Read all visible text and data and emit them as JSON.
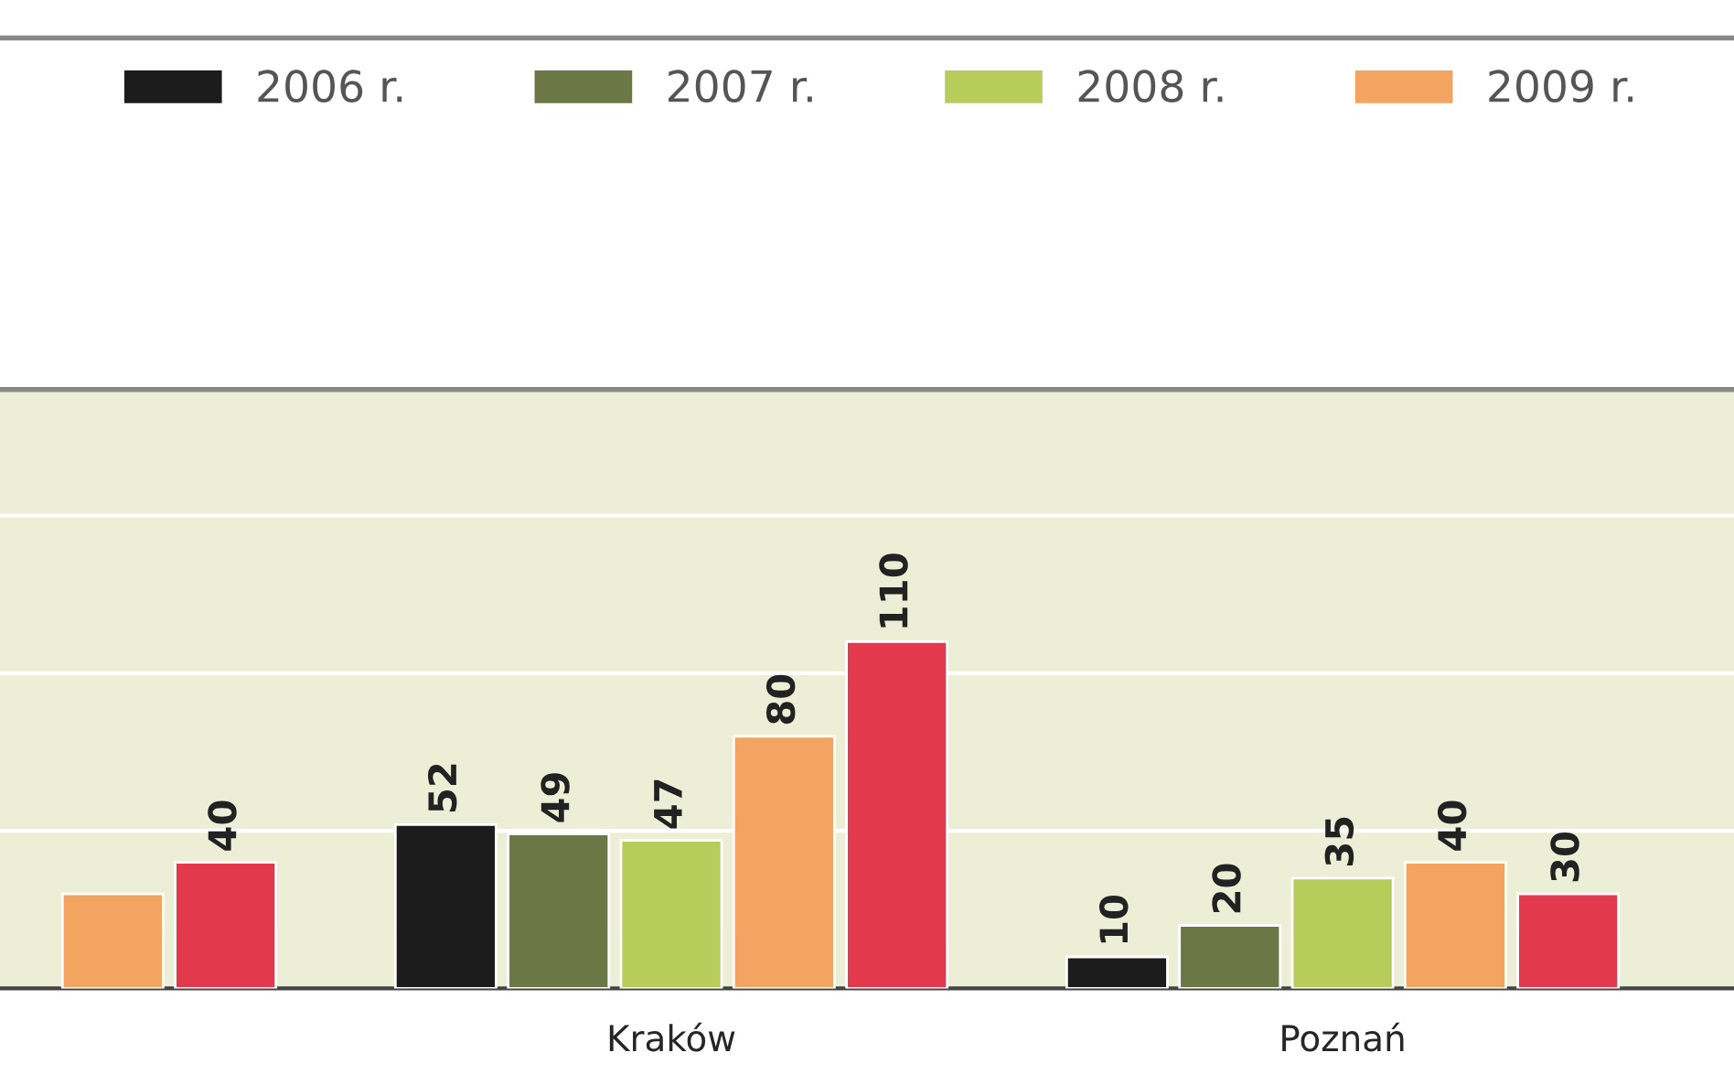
{
  "chart_data": {
    "type": "bar",
    "categories": [
      null,
      "Kraków",
      "Poznań"
    ],
    "series": [
      {
        "name": "2006 r.",
        "color": "#1c1c1c",
        "values": [
          null,
          52,
          10
        ],
        "value_labels": [
          null,
          "52",
          "10"
        ]
      },
      {
        "name": "2007 r.",
        "color": "#6b7845",
        "values": [
          null,
          49,
          20
        ],
        "value_labels": [
          null,
          "49",
          "20"
        ]
      },
      {
        "name": "2008 r.",
        "color": "#b8cc5c",
        "values": [
          null,
          47,
          35
        ],
        "value_labels": [
          null,
          "47",
          "35"
        ]
      },
      {
        "name": "2009 r.",
        "color": "#f3a461",
        "values": [
          30,
          80,
          40
        ],
        "value_labels": [
          null,
          "80",
          "40"
        ]
      },
      {
        "color": "#e23a4c",
        "values": [
          40,
          110,
          30
        ],
        "value_labels": [
          "40",
          "110",
          "30"
        ]
      }
    ],
    "ylim": [
      0,
      190
    ],
    "yticks": [
      {
        "value": 50,
        "label": null
      },
      {
        "value": 100,
        "label": null
      },
      {
        "value": 150,
        "label": null
      }
    ],
    "grid": "y",
    "legend": "top",
    "tick_labels": "x"
  }
}
